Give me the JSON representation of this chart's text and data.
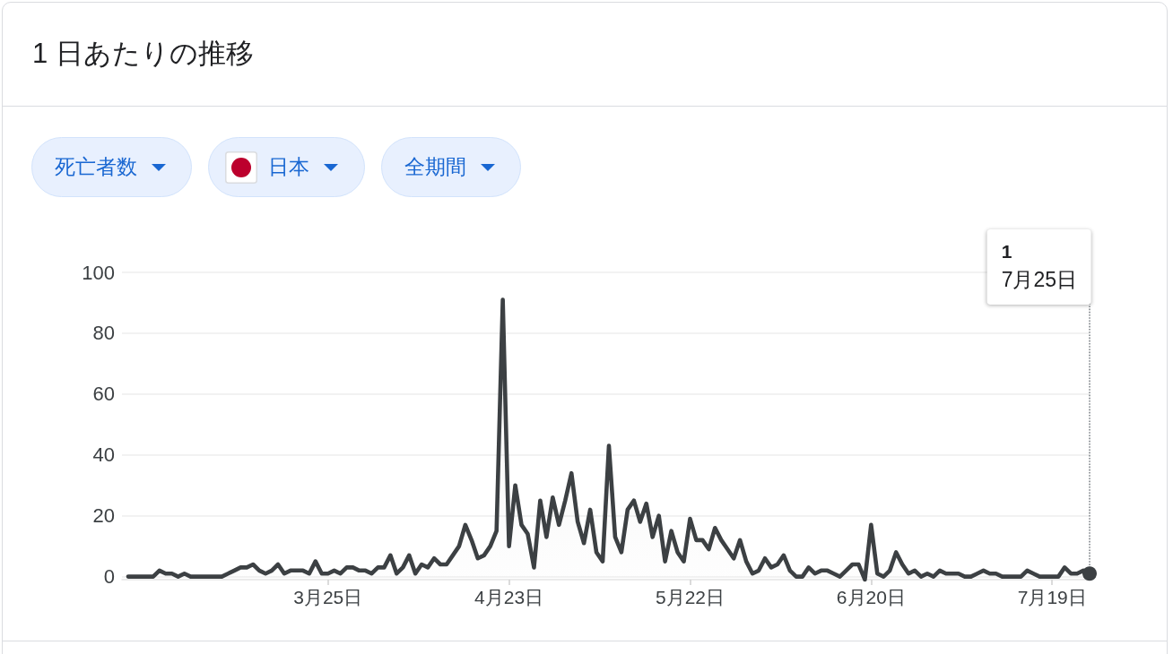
{
  "chart_data": {
    "type": "area",
    "title": "1 日あたりの推移",
    "annotations": [
      "死亡者数",
      "日本",
      "全期間"
    ],
    "x": [
      "--02-22",
      "--02-23",
      "--02-24",
      "--02-25",
      "--02-26",
      "--02-27",
      "--02-28",
      "--02-29",
      "--03-01",
      "--03-02",
      "--03-03",
      "--03-04",
      "--03-05",
      "--03-06",
      "--03-07",
      "--03-08",
      "--03-09",
      "--03-10",
      "--03-11",
      "--03-12",
      "--03-13",
      "--03-14",
      "--03-15",
      "--03-16",
      "--03-17",
      "--03-18",
      "--03-19",
      "--03-20",
      "--03-21",
      "--03-22",
      "--03-23",
      "--03-24",
      "--03-25",
      "--03-26",
      "--03-27",
      "--03-28",
      "--03-29",
      "--03-30",
      "--03-31",
      "--04-01",
      "--04-02",
      "--04-03",
      "--04-04",
      "--04-05",
      "--04-06",
      "--04-07",
      "--04-08",
      "--04-09",
      "--04-10",
      "--04-11",
      "--04-12",
      "--04-13",
      "--04-14",
      "--04-15",
      "--04-16",
      "--04-17",
      "--04-18",
      "--04-19",
      "--04-20",
      "--04-21",
      "--04-22",
      "--04-23",
      "--04-24",
      "--04-25",
      "--04-26",
      "--04-27",
      "--04-28",
      "--04-29",
      "--04-30",
      "--05-01",
      "--05-02",
      "--05-03",
      "--05-04",
      "--05-05",
      "--05-06",
      "--05-07",
      "--05-08",
      "--05-09",
      "--05-10",
      "--05-11",
      "--05-12",
      "--05-13",
      "--05-14",
      "--05-15",
      "--05-16",
      "--05-17",
      "--05-18",
      "--05-19",
      "--05-20",
      "--05-21",
      "--05-22",
      "--05-23",
      "--05-24",
      "--05-25",
      "--05-26",
      "--05-27",
      "--05-28",
      "--05-29",
      "--05-30",
      "--05-31",
      "--06-01",
      "--06-02",
      "--06-03",
      "--06-04",
      "--06-05",
      "--06-06",
      "--06-07",
      "--06-08",
      "--06-09",
      "--06-10",
      "--06-11",
      "--06-12",
      "--06-13",
      "--06-14",
      "--06-15",
      "--06-16",
      "--06-17",
      "--06-18",
      "--06-19",
      "--06-20",
      "--06-21",
      "--06-22",
      "--06-23",
      "--06-24",
      "--06-25",
      "--06-26",
      "--06-27",
      "--06-28",
      "--06-29",
      "--06-30",
      "--07-01",
      "--07-02",
      "--07-03",
      "--07-04",
      "--07-05",
      "--07-06",
      "--07-07",
      "--07-08",
      "--07-09",
      "--07-10",
      "--07-11",
      "--07-12",
      "--07-13",
      "--07-14",
      "--07-15",
      "--07-16",
      "--07-17",
      "--07-18",
      "--07-19",
      "--07-20",
      "--07-21",
      "--07-22",
      "--07-23",
      "--07-24",
      "--07-25"
    ],
    "values": [
      0,
      0,
      0,
      0,
      0,
      2,
      1,
      1,
      0,
      1,
      0,
      0,
      0,
      0,
      0,
      0,
      1,
      2,
      3,
      3,
      4,
      2,
      1,
      2,
      4,
      1,
      2,
      2,
      2,
      1,
      5,
      1,
      1,
      2,
      1,
      3,
      3,
      2,
      2,
      1,
      3,
      3,
      7,
      1,
      3,
      7,
      1,
      4,
      3,
      6,
      4,
      4,
      7,
      10,
      17,
      12,
      6,
      7,
      10,
      15,
      91,
      10,
      30,
      17,
      14,
      3,
      25,
      13,
      26,
      17,
      25,
      34,
      18,
      11,
      22,
      8,
      5,
      43,
      13,
      8,
      22,
      25,
      18,
      24,
      13,
      20,
      5,
      15,
      8,
      5,
      19,
      12,
      12,
      9,
      16,
      12,
      9,
      6,
      12,
      5,
      1,
      2,
      6,
      3,
      4,
      7,
      2,
      0,
      0,
      3,
      1,
      2,
      2,
      1,
      0,
      2,
      4,
      4,
      -1,
      17,
      1,
      0,
      2,
      8,
      4,
      1,
      2,
      0,
      1,
      0,
      2,
      1,
      1,
      1,
      0,
      0,
      1,
      2,
      1,
      1,
      0,
      0,
      0,
      0,
      2,
      1,
      0,
      0,
      0,
      0,
      3,
      1,
      1,
      2,
      1
    ],
    "color": "#3c4043",
    "marker": "none",
    "line_style": "solid",
    "xlim": [
      "--02-21",
      "--07-25"
    ],
    "xticks": [
      {
        "value": "--03-25",
        "label": "3月25日"
      },
      {
        "value": "--04-23",
        "label": "4月23日"
      },
      {
        "value": "--05-22",
        "label": "5月22日"
      },
      {
        "value": "--06-20",
        "label": "6月20日"
      },
      {
        "value": "--07-19",
        "label": "7月19日"
      }
    ],
    "ylim": [
      -1,
      100
    ],
    "yticks": [
      0,
      20,
      40,
      60,
      80,
      100
    ],
    "grid": "y",
    "ref_lines": [
      {
        "axis": "x",
        "value": "--07-25",
        "label": "1\n7月25日",
        "line_style": "dotted",
        "color": "#80868b"
      }
    ]
  }
}
